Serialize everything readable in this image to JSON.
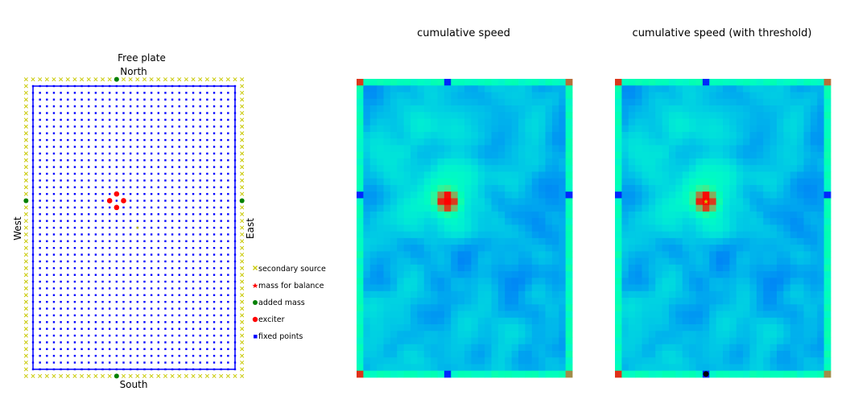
{
  "chart_data": [
    {
      "type": "scatter",
      "title": "Free plate",
      "subtitle": "North",
      "xlabel": "South",
      "left_label": "West",
      "right_label": "East",
      "grid": {
        "columns": 30,
        "rows": 43
      },
      "series": [
        {
          "name": "secondary source",
          "marker": "x",
          "color": "#c8c800",
          "points": "border ring (32 x 45) around the grid"
        },
        {
          "name": "mass for balance",
          "marker": "star",
          "color": "#ff0000",
          "points": [
            [
              15,
              21
            ]
          ]
        },
        {
          "name": "added mass",
          "marker": "dot",
          "color": "#008000",
          "points": [
            [
              12,
              -1
            ],
            [
              12,
              43
            ],
            [
              -1,
              17
            ],
            [
              30,
              17
            ]
          ]
        },
        {
          "name": "exciter",
          "marker": "dot",
          "color": "#ff0000",
          "points": [
            [
              12,
              16
            ],
            [
              11,
              17
            ],
            [
              13,
              17
            ],
            [
              12,
              18
            ]
          ]
        },
        {
          "name": "fixed points",
          "marker": "square",
          "color": "#0000ff",
          "points": "every grid node"
        }
      ],
      "legend": {
        "position": "right",
        "items": [
          "secondary source",
          "mass for balance",
          "added mass",
          "exciter",
          "fixed points"
        ]
      }
    },
    {
      "type": "heatmap",
      "title": "cumulative speed",
      "colormap": "rainbow",
      "grid": {
        "columns": 32,
        "rows": 45
      },
      "peak": {
        "col": 13,
        "row": 18
      }
    },
    {
      "type": "heatmap",
      "title": "cumulative speed (with threshold)",
      "colormap": "rainbow",
      "grid": {
        "columns": 32,
        "rows": 45
      },
      "peak": {
        "col": 13,
        "row": 18
      },
      "markers": [
        {
          "kind": "star",
          "color": "#c8c800",
          "col": 13,
          "row": 18
        },
        {
          "kind": "dot",
          "color": "#000000",
          "col": 13,
          "row": 44
        }
      ]
    }
  ]
}
